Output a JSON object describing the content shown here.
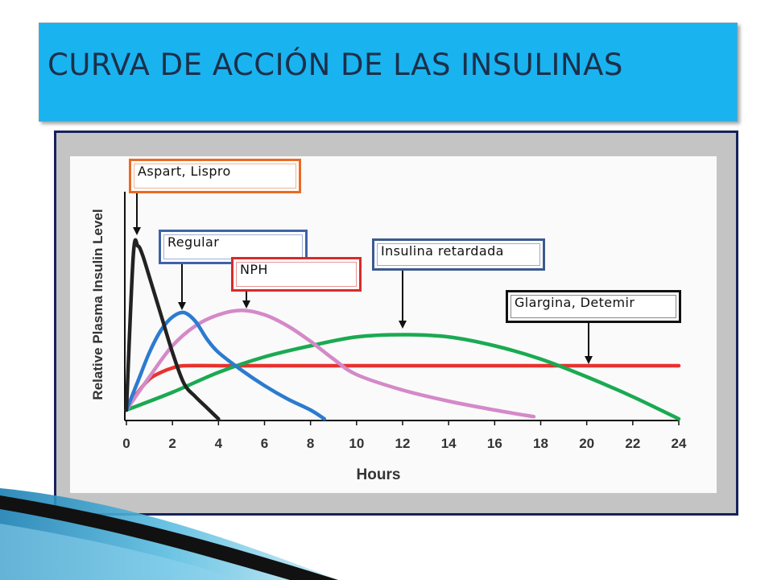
{
  "title": "CURVA DE ACCIÓN DE LAS INSULINAS",
  "labels": {
    "aspart": "Aspart, Lispro",
    "regular": "Regular",
    "nph": "NPH",
    "retardada": "Insulina retardada",
    "glargina": "Glargina, Detemir"
  },
  "colors": {
    "title_bg": "#19b3f0",
    "title_text": "#1d2f49",
    "frame": "#17215b",
    "aspart": "#222222",
    "regular": "#2b7bd0",
    "nph": "#d489c8",
    "retardada": "#1aaa52",
    "glargina": "#e8322f",
    "box_aspart": "#ea6a24",
    "box_regular": "#3f62a8",
    "box_nph": "#d62b2b",
    "box_retardada": "#3b5a8f",
    "box_glargina": "#111111"
  },
  "chart_data": {
    "type": "line",
    "xlabel": "Hours",
    "ylabel": "Relative Plasma Insulin Level",
    "xlim": [
      0,
      24
    ],
    "ylim": [
      0,
      1
    ],
    "xticks": [
      0,
      2,
      4,
      6,
      8,
      10,
      12,
      14,
      16,
      18,
      20,
      22,
      24
    ],
    "grid": false,
    "series": [
      {
        "name": "Aspart, Lispro",
        "x": [
          0,
          0.3,
          0.5,
          0.7,
          1,
          1.5,
          2,
          2.5,
          3,
          3.5,
          4
        ],
        "y": [
          0.04,
          0.74,
          0.78,
          0.74,
          0.64,
          0.47,
          0.3,
          0.16,
          0.1,
          0.05,
          0.0
        ]
      },
      {
        "name": "Regular",
        "x": [
          0,
          0.5,
          1,
          1.5,
          2,
          2.5,
          3,
          3.5,
          4,
          5,
          6,
          7,
          8,
          8.6
        ],
        "y": [
          0.04,
          0.17,
          0.3,
          0.4,
          0.46,
          0.48,
          0.44,
          0.36,
          0.3,
          0.22,
          0.15,
          0.09,
          0.04,
          0.0
        ]
      },
      {
        "name": "NPH",
        "x": [
          0,
          1,
          2,
          3,
          4,
          5,
          6,
          7,
          8,
          9,
          10,
          12,
          14,
          16,
          17.7
        ],
        "y": [
          0.04,
          0.19,
          0.33,
          0.42,
          0.47,
          0.49,
          0.47,
          0.42,
          0.35,
          0.27,
          0.2,
          0.13,
          0.08,
          0.04,
          0.01
        ]
      },
      {
        "name": "Insulina retardada",
        "x": [
          0,
          2,
          4,
          6,
          8,
          10,
          12,
          14,
          16,
          18,
          20,
          22,
          24
        ],
        "y": [
          0.04,
          0.12,
          0.21,
          0.28,
          0.33,
          0.37,
          0.38,
          0.37,
          0.33,
          0.27,
          0.19,
          0.1,
          0.0
        ]
      },
      {
        "name": "Glargina, Detemir",
        "x": [
          0,
          0.5,
          1,
          1.5,
          2,
          2.5,
          4,
          8,
          12,
          16,
          20,
          24
        ],
        "y": [
          0.04,
          0.12,
          0.18,
          0.21,
          0.23,
          0.24,
          0.24,
          0.24,
          0.24,
          0.24,
          0.24,
          0.24
        ]
      }
    ]
  }
}
